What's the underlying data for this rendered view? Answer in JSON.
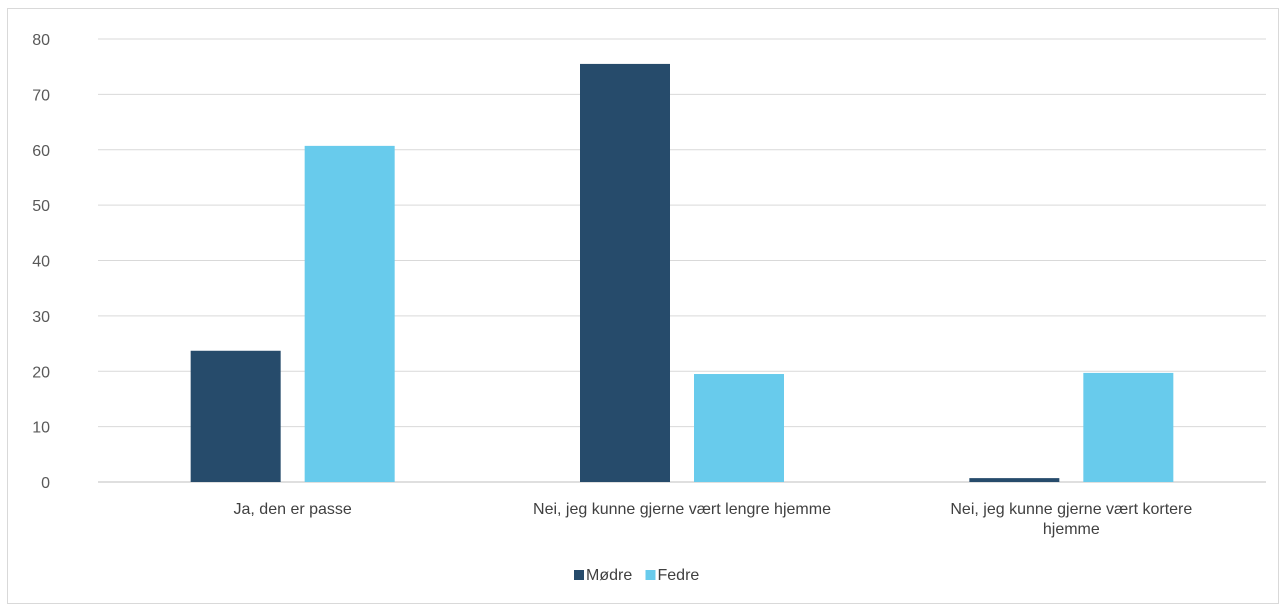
{
  "chart_data": {
    "type": "bar",
    "categories": [
      [
        "Ja, den er passe"
      ],
      [
        "Nei, jeg kunne gjerne vært lengre hjemme"
      ],
      [
        "Nei, jeg kunne gjerne vært kortere",
        "hjemme"
      ]
    ],
    "series": [
      {
        "name": "Mødre",
        "color": "#264b6b",
        "values": [
          23.7,
          75.5,
          0.7
        ]
      },
      {
        "name": "Fedre",
        "color": "#68cbec",
        "values": [
          60.7,
          19.5,
          19.7
        ]
      }
    ],
    "ylim": [
      0,
      80
    ],
    "yticks": [
      0,
      10,
      20,
      30,
      40,
      50,
      60,
      70,
      80
    ],
    "grid": true,
    "legend_position": "bottom"
  }
}
